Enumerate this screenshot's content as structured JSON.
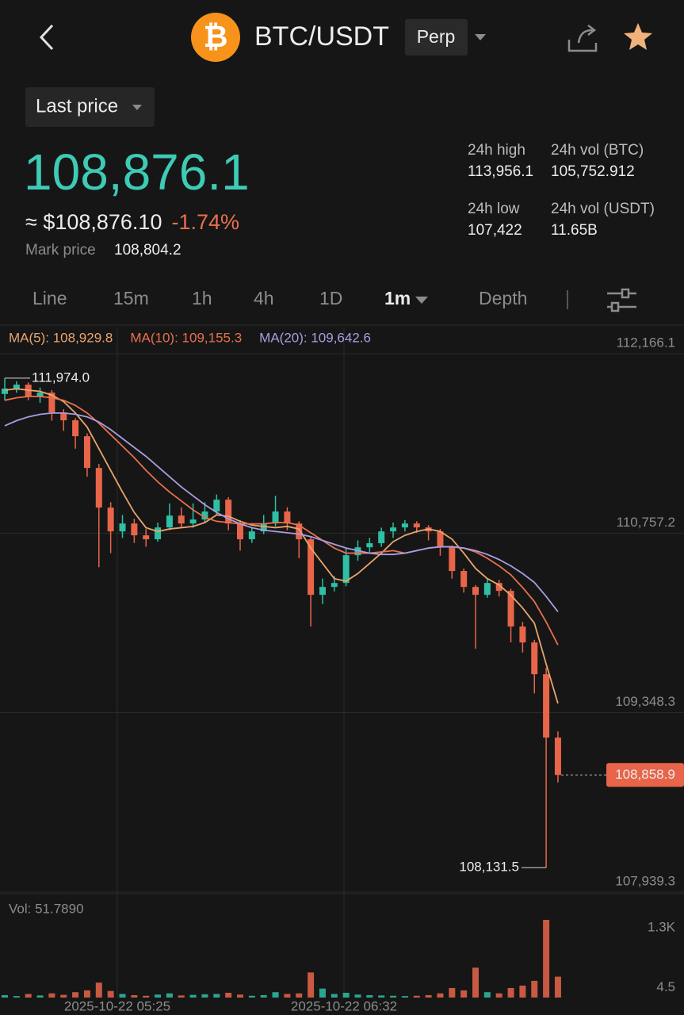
{
  "header": {
    "pair": "BTC/USDT",
    "contract": "Perp"
  },
  "price_mode": "Last price",
  "price": {
    "last": "108,876.1",
    "approx": "≈ $108,876.10",
    "change": "-1.74%",
    "mark_label": "Mark price",
    "mark": "108,804.2"
  },
  "stats": [
    {
      "label": "24h high",
      "value": "113,956.1"
    },
    {
      "label": "24h vol (BTC)",
      "value": "105,752.912"
    },
    {
      "label": "24h low",
      "value": "107,422"
    },
    {
      "label": "24h vol (USDT)",
      "value": "11.65B"
    }
  ],
  "tabs": [
    "Line",
    "15m",
    "1h",
    "4h",
    "1D",
    "1m",
    "Depth"
  ],
  "chart": {
    "type": "candlestick",
    "ma_labels": [
      {
        "text": "MA(5): 108,929.8",
        "color": "#e9a46d"
      },
      {
        "text": "MA(10): 109,155.3",
        "color": "#e8704f"
      },
      {
        "text": "MA(20): 109,642.6",
        "color": "#a99de0"
      }
    ],
    "ylim": [
      107939.3,
      112166.1
    ],
    "yticks": [
      {
        "value": 107939.3,
        "label": "107,939.3"
      },
      {
        "value": 109348.3,
        "label": "109,348.3"
      },
      {
        "value": 110757.2,
        "label": "110,757.2"
      },
      {
        "value": 112166.1,
        "label": "112,166.1"
      }
    ],
    "up_color": "#2ebfa5",
    "down_color": "#e8654a",
    "candles": [
      [
        111850,
        111974,
        111800,
        111892
      ],
      [
        111892,
        111950,
        111860,
        111923
      ],
      [
        111923,
        111940,
        111800,
        111830
      ],
      [
        111830,
        111900,
        111780,
        111860
      ],
      [
        111860,
        111880,
        111640,
        111705
      ],
      [
        111705,
        111730,
        111560,
        111643
      ],
      [
        111643,
        111660,
        111420,
        111518
      ],
      [
        111518,
        111540,
        111200,
        111269
      ],
      [
        111269,
        111300,
        110490,
        110958
      ],
      [
        110958,
        111000,
        110600,
        110771
      ],
      [
        110771,
        110900,
        110720,
        110833
      ],
      [
        110833,
        110870,
        110680,
        110740
      ],
      [
        110740,
        110790,
        110650,
        110709
      ],
      [
        110709,
        110840,
        110690,
        110802
      ],
      [
        110802,
        110990,
        110780,
        110895
      ],
      [
        110895,
        110960,
        110800,
        110833
      ],
      [
        110833,
        110990,
        110800,
        110864
      ],
      [
        110864,
        111000,
        110840,
        110927
      ],
      [
        110927,
        111060,
        110900,
        111020
      ],
      [
        111020,
        111040,
        110780,
        110833
      ],
      [
        110833,
        110860,
        110620,
        110709
      ],
      [
        110709,
        110800,
        110680,
        110771
      ],
      [
        110771,
        110900,
        110750,
        110833
      ],
      [
        110833,
        111050,
        110810,
        110927
      ],
      [
        110927,
        110960,
        110780,
        110833
      ],
      [
        110833,
        110850,
        110560,
        110709
      ],
      [
        110709,
        110730,
        110024,
        110273
      ],
      [
        110273,
        110400,
        110200,
        110335
      ],
      [
        110335,
        110420,
        110300,
        110366
      ],
      [
        110366,
        110640,
        110340,
        110584
      ],
      [
        110584,
        110700,
        110540,
        110646
      ],
      [
        110646,
        110720,
        110600,
        110678
      ],
      [
        110678,
        110800,
        110650,
        110771
      ],
      [
        110771,
        110840,
        110720,
        110802
      ],
      [
        110802,
        110860,
        110770,
        110833
      ],
      [
        110833,
        110850,
        110760,
        110802
      ],
      [
        110802,
        110820,
        110700,
        110771
      ],
      [
        110771,
        110790,
        110580,
        110646
      ],
      [
        110646,
        110660,
        110400,
        110460
      ],
      [
        110460,
        110480,
        110290,
        110335
      ],
      [
        110335,
        110350,
        109850,
        110273
      ],
      [
        110273,
        110400,
        110250,
        110366
      ],
      [
        110366,
        110390,
        110260,
        110304
      ],
      [
        110304,
        110320,
        109900,
        110024
      ],
      [
        110024,
        110060,
        109820,
        109899
      ],
      [
        109899,
        109920,
        109500,
        109650
      ],
      [
        109650,
        109700,
        108131.5,
        109152
      ],
      [
        109152,
        109200,
        108800,
        108859
      ]
    ],
    "ma": [
      {
        "color": "#e9a46d",
        "values": [
          111880,
          111890,
          111880,
          111870,
          111840,
          111790,
          111700,
          111590,
          111420,
          111250,
          111080,
          110920,
          110800,
          110770,
          110790,
          110800,
          110810,
          110840,
          110900,
          110890,
          110850,
          110820,
          110810,
          110800,
          110810,
          110790,
          110640,
          110520,
          110400,
          110380,
          110440,
          110520,
          110600,
          110690,
          110740,
          110770,
          110790,
          110770,
          110710,
          110600,
          110480,
          110400,
          110350,
          110270,
          110170,
          110050,
          109730,
          109420
        ]
      },
      {
        "color": "#e8704f",
        "values": [
          111800,
          111820,
          111830,
          111830,
          111820,
          111800,
          111760,
          111700,
          111620,
          111530,
          111440,
          111350,
          111250,
          111160,
          111080,
          111010,
          110940,
          110880,
          110850,
          110840,
          110830,
          110830,
          110830,
          110840,
          110840,
          110820,
          110760,
          110700,
          110640,
          110600,
          110600,
          110600,
          110610,
          110620,
          110600,
          110620,
          110640,
          110650,
          110650,
          110640,
          110610,
          110560,
          110500,
          110430,
          110330,
          110220,
          110060,
          109880
        ]
      },
      {
        "color": "#a99de0",
        "values": [
          111600,
          111640,
          111670,
          111690,
          111700,
          111700,
          111690,
          111670,
          111630,
          111570,
          111500,
          111430,
          111360,
          111280,
          111200,
          111120,
          111050,
          110980,
          110920,
          110870,
          110830,
          110800,
          110780,
          110770,
          110760,
          110750,
          110730,
          110700,
          110670,
          110640,
          110620,
          110600,
          110590,
          110590,
          110600,
          110620,
          110640,
          110650,
          110650,
          110640,
          110620,
          110590,
          110550,
          110500,
          110440,
          110370,
          110260,
          110140
        ]
      }
    ],
    "high_marker": {
      "value": 111974.0,
      "label": "111,974.0"
    },
    "low_marker": {
      "value": 108131.5,
      "label": "108,131.5"
    },
    "last_marker": {
      "value": 108858.9,
      "label": "108,858.9"
    },
    "volume": {
      "label": "Vol: 51.7890",
      "ylim": [
        0,
        1300
      ],
      "yticks": [
        4.5,
        {
          "value": 1300,
          "label": "1.3K"
        }
      ],
      "values": [
        40,
        25,
        60,
        35,
        70,
        45,
        90,
        120,
        250,
        110,
        60,
        40,
        30,
        50,
        70,
        35,
        45,
        55,
        60,
        80,
        50,
        30,
        40,
        90,
        60,
        70,
        420,
        150,
        60,
        80,
        50,
        40,
        35,
        30,
        25,
        30,
        40,
        70,
        160,
        120,
        500,
        90,
        70,
        160,
        200,
        280,
        1300,
        350
      ]
    },
    "time_labels": [
      "2025-10-22 05:25",
      "2025-10-22 06:32"
    ]
  }
}
